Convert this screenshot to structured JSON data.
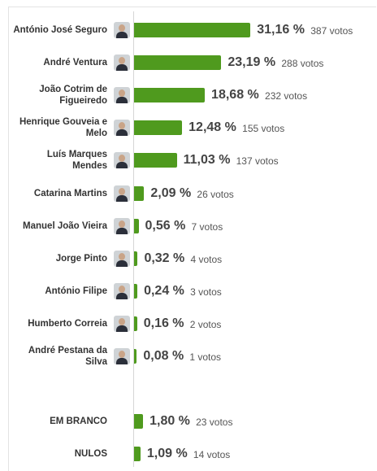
{
  "chart_data": {
    "type": "bar",
    "categories": [
      "António José Seguro",
      "André Ventura",
      "João Cotrim de Figueiredo",
      "Henrique Gouveia e Melo",
      "Luís Marques Mendes",
      "Catarina Martins",
      "Manuel João Vieira",
      "Jorge Pinto",
      "António Filipe",
      "Humberto Correia",
      "André Pestana da Silva",
      "EM BRANCO",
      "NULOS"
    ],
    "values": [
      31.16,
      23.19,
      18.68,
      12.48,
      11.03,
      2.09,
      0.56,
      0.32,
      0.24,
      0.16,
      0.08,
      1.8,
      1.09
    ],
    "value_labels": [
      "31,16 %",
      "23,19 %",
      "18,68 %",
      "12,48 %",
      "11,03 %",
      "2,09 %",
      "0,56 %",
      "0,32 %",
      "0,24 %",
      "0,16 %",
      "0,08 %",
      "1,80 %",
      "1,09 %"
    ],
    "vote_labels": [
      "387 votos",
      "288 votos",
      "232 votos",
      "155 votos",
      "137 votos",
      "26 votos",
      "7 votos",
      "4 votos",
      "3 votos",
      "2 votos",
      "1 votos",
      "23 votos",
      "14 votos"
    ],
    "color": "#4f9a1e"
  }
}
